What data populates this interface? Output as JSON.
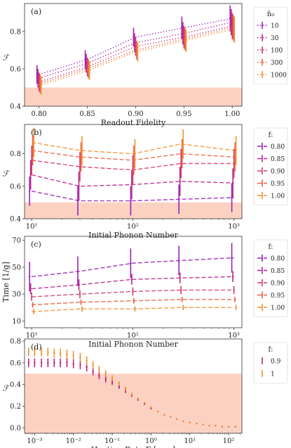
{
  "chart_data": [
    {
      "type": "line",
      "panel_label": "(a)",
      "xlabel": "Readout Fidelity",
      "ylabel": "ℱ",
      "x": [
        0.8,
        0.85,
        0.9,
        0.95,
        1.0
      ],
      "xticks": [
        "0.80",
        "0.85",
        "0.90",
        "0.95",
        "1.00"
      ],
      "xlim": [
        0.785,
        1.01
      ],
      "ylim": [
        0.4,
        0.95
      ],
      "yticks": [
        "0.4",
        "0.6",
        "0.8"
      ],
      "ytick_values": [
        0.4,
        0.6,
        0.8
      ],
      "shaded_region": [
        0.4,
        0.5
      ],
      "line_style": "dotted",
      "legend_title": "n̄₀",
      "legend_placement": "outside-right",
      "series": [
        {
          "name": "10",
          "color": "#9b1fb8",
          "values": [
            0.57,
            0.65,
            0.77,
            0.82,
            0.87
          ],
          "err": [
            0.05,
            0.05,
            0.05,
            0.06,
            0.07
          ]
        },
        {
          "name": "30",
          "color": "#b8258f",
          "values": [
            0.55,
            0.63,
            0.74,
            0.79,
            0.85
          ],
          "err": [
            0.05,
            0.05,
            0.05,
            0.06,
            0.07
          ]
        },
        {
          "name": "100",
          "color": "#d43b6a",
          "values": [
            0.53,
            0.61,
            0.72,
            0.77,
            0.83
          ],
          "err": [
            0.05,
            0.05,
            0.05,
            0.06,
            0.07
          ]
        },
        {
          "name": "300",
          "color": "#ea5f43",
          "values": [
            0.52,
            0.6,
            0.7,
            0.76,
            0.82
          ],
          "err": [
            0.05,
            0.05,
            0.05,
            0.06,
            0.07
          ]
        },
        {
          "name": "1000",
          "color": "#f29132",
          "values": [
            0.51,
            0.59,
            0.69,
            0.75,
            0.81
          ],
          "err": [
            0.05,
            0.05,
            0.05,
            0.06,
            0.07
          ]
        }
      ]
    },
    {
      "type": "line",
      "panel_label": "(b)",
      "xlabel": "Initial Phonon Number",
      "ylabel": "ℱ",
      "xscale": "log",
      "x": [
        10,
        30,
        100,
        300,
        1000
      ],
      "xticks": [
        "10¹",
        "10²",
        "10³"
      ],
      "xtick_values": [
        10,
        100,
        1000
      ],
      "xlim": [
        8.5,
        1200
      ],
      "ylim": [
        0.4,
        0.98
      ],
      "yticks": [
        "0.4",
        "0.6",
        "0.8"
      ],
      "ytick_values": [
        0.4,
        0.6,
        0.8
      ],
      "shaded_region": [
        0.4,
        0.5
      ],
      "line_style": "dashed",
      "legend_title": "f:",
      "legend_placement": "outside-right",
      "series": [
        {
          "name": "0.80",
          "color": "#9b1fb8",
          "values": [
            0.57,
            0.51,
            0.51,
            0.52,
            0.53
          ],
          "err": [
            0.09,
            0.09,
            0.09,
            0.09,
            0.09
          ]
        },
        {
          "name": "0.85",
          "color": "#b8258f",
          "values": [
            0.67,
            0.6,
            0.61,
            0.63,
            0.62
          ],
          "err": [
            0.09,
            0.09,
            0.09,
            0.09,
            0.09
          ]
        },
        {
          "name": "0.90",
          "color": "#d43b6a",
          "values": [
            0.76,
            0.72,
            0.7,
            0.74,
            0.74
          ],
          "err": [
            0.09,
            0.09,
            0.09,
            0.09,
            0.09
          ]
        },
        {
          "name": "0.95",
          "color": "#ea5f43",
          "values": [
            0.82,
            0.78,
            0.76,
            0.8,
            0.78
          ],
          "err": [
            0.09,
            0.09,
            0.09,
            0.09,
            0.09
          ]
        },
        {
          "name": "1.00",
          "color": "#f29132",
          "values": [
            0.87,
            0.82,
            0.8,
            0.86,
            0.82
          ],
          "err": [
            0.09,
            0.09,
            0.09,
            0.09,
            0.09
          ]
        }
      ]
    },
    {
      "type": "line",
      "panel_label": "(c)",
      "xlabel": "Initial Phonon Number",
      "ylabel": "Time [1/g]",
      "xscale": "log",
      "x": [
        10,
        30,
        100,
        300,
        1000
      ],
      "xticks": [
        "10¹",
        "10²",
        "10³"
      ],
      "xtick_values": [
        10,
        100,
        1000
      ],
      "xlim": [
        8.5,
        1200
      ],
      "ylim": [
        5,
        73
      ],
      "yticks": [
        "10",
        "30",
        "50",
        "70"
      ],
      "ytick_values": [
        10,
        30,
        50,
        70
      ],
      "line_style": "dashed",
      "legend_title": "f:",
      "legend_placement": "outside-right",
      "series": [
        {
          "name": "0.80",
          "color": "#9b1fb8",
          "values": [
            43,
            47,
            53,
            55,
            57
          ],
          "err": [
            11,
            11,
            11,
            11,
            11
          ]
        },
        {
          "name": "0.85",
          "color": "#b8258f",
          "values": [
            34,
            37,
            41,
            42,
            43
          ],
          "err": [
            4,
            4,
            4,
            4,
            4
          ]
        },
        {
          "name": "0.90",
          "color": "#d43b6a",
          "values": [
            28,
            30,
            32,
            33,
            33
          ],
          "err": [
            3,
            3,
            3,
            3,
            3
          ]
        },
        {
          "name": "0.95",
          "color": "#ea5f43",
          "values": [
            22,
            24,
            25,
            26,
            26
          ],
          "err": [
            2,
            2,
            2,
            2,
            2
          ]
        },
        {
          "name": "1.00",
          "color": "#f29132",
          "values": [
            17,
            19,
            19,
            20,
            20
          ],
          "err": [
            2,
            2,
            2,
            2,
            2
          ]
        }
      ]
    },
    {
      "type": "scatter",
      "panel_label": "(d)",
      "xlabel": "Heating Rate Γ [ ωₘ ]",
      "ylabel": "ℱ",
      "xscale": "log",
      "x": [
        0.0007,
        0.001,
        0.0015,
        0.0022,
        0.0032,
        0.0046,
        0.0068,
        0.01,
        0.015,
        0.022,
        0.032,
        0.046,
        0.068,
        0.1,
        0.15,
        0.22,
        0.32,
        0.46,
        0.68,
        1,
        1.5,
        2.2,
        3.2,
        4.6,
        6.8,
        10,
        15,
        22,
        32,
        46,
        68,
        100,
        150
      ],
      "xticks": [
        "10⁻³",
        "10⁻²",
        "10⁻¹",
        "10⁰",
        "10¹",
        "10²"
      ],
      "xtick_values": [
        0.001,
        0.01,
        0.1,
        1,
        10,
        100
      ],
      "xlim": [
        0.00055,
        220
      ],
      "ylim": [
        -0.05,
        0.82
      ],
      "yticks": [
        "0.0",
        "0.2",
        "0.4",
        "0.6",
        "0.8"
      ],
      "ytick_values": [
        0.0,
        0.2,
        0.4,
        0.6,
        0.8
      ],
      "shaded_region": [
        -0.05,
        0.5
      ],
      "legend_title": "f:",
      "legend_placement": "outside-right",
      "series": [
        {
          "name": "0.9",
          "color": "#c0207e",
          "values": [
            0.6,
            0.6,
            0.6,
            0.6,
            0.6,
            0.6,
            0.6,
            0.59,
            0.58,
            0.56,
            0.52,
            0.48,
            0.45,
            0.42,
            0.38,
            0.34,
            0.3,
            0.26,
            0.22,
            0.18,
            0.15,
            0.12,
            0.1,
            0.08,
            0.06,
            0.05,
            0.04,
            0.03,
            0.02,
            0.02,
            0.01,
            0.01,
            0.01
          ],
          "err": [
            0.04,
            0.04,
            0.04,
            0.04,
            0.04,
            0.04,
            0.04,
            0.04,
            0.04,
            0.04,
            0.035,
            0.03,
            0.03,
            0.025,
            0.02,
            0.02,
            0.015,
            0.01,
            0.01,
            0.01,
            0.008,
            0.006,
            0.005,
            0.004,
            0.003,
            0.003,
            0.002,
            0.002,
            0.002,
            0.002,
            0.002,
            0.002,
            0.002
          ]
        },
        {
          "name": "1",
          "color": "#f29132",
          "values": [
            0.7,
            0.7,
            0.7,
            0.7,
            0.69,
            0.69,
            0.68,
            0.67,
            0.65,
            0.62,
            0.58,
            0.54,
            0.5,
            0.46,
            0.41,
            0.36,
            0.31,
            0.27,
            0.23,
            0.19,
            0.15,
            0.12,
            0.1,
            0.08,
            0.06,
            0.05,
            0.04,
            0.03,
            0.02,
            0.02,
            0.01,
            0.01,
            0.01
          ],
          "err": [
            0.04,
            0.04,
            0.04,
            0.04,
            0.04,
            0.04,
            0.04,
            0.04,
            0.04,
            0.04,
            0.035,
            0.03,
            0.03,
            0.025,
            0.02,
            0.02,
            0.015,
            0.01,
            0.01,
            0.01,
            0.008,
            0.006,
            0.005,
            0.004,
            0.003,
            0.003,
            0.002,
            0.002,
            0.002,
            0.002,
            0.002,
            0.002,
            0.002
          ]
        }
      ]
    }
  ]
}
